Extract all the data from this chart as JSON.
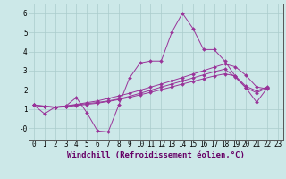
{
  "xlabel": "Windchill (Refroidissement éolien,°C)",
  "background_color": "#cce8e8",
  "grid_color": "#aacccc",
  "line_color": "#993399",
  "xlim": [
    -0.5,
    23.5
  ],
  "ylim": [
    -0.6,
    6.5
  ],
  "yticks": [
    0,
    1,
    2,
    3,
    4,
    5,
    6
  ],
  "ytick_labels": [
    "-0",
    "1",
    "2",
    "3",
    "4",
    "5",
    "6"
  ],
  "xticks": [
    0,
    1,
    2,
    3,
    4,
    5,
    6,
    7,
    8,
    9,
    10,
    11,
    12,
    13,
    14,
    15,
    16,
    17,
    18,
    19,
    20,
    21,
    22,
    23
  ],
  "series": [
    [
      1.2,
      0.75,
      1.1,
      1.15,
      1.6,
      0.8,
      -0.15,
      -0.2,
      1.2,
      2.6,
      3.4,
      3.5,
      3.5,
      5.0,
      6.0,
      5.2,
      4.1,
      4.1,
      3.5,
      2.7,
      2.1,
      1.35,
      2.1
    ],
    [
      1.2,
      1.15,
      1.1,
      1.15,
      1.22,
      1.28,
      1.34,
      1.42,
      1.52,
      1.66,
      1.82,
      1.98,
      2.14,
      2.3,
      2.46,
      2.62,
      2.78,
      2.94,
      3.08,
      2.65,
      2.1,
      1.85,
      2.1
    ],
    [
      1.2,
      1.13,
      1.07,
      1.12,
      1.18,
      1.24,
      1.3,
      1.39,
      1.49,
      1.6,
      1.74,
      1.87,
      2.01,
      2.15,
      2.3,
      2.44,
      2.58,
      2.72,
      2.83,
      2.72,
      2.18,
      1.95,
      2.15
    ],
    [
      1.2,
      1.15,
      1.1,
      1.16,
      1.24,
      1.33,
      1.42,
      1.55,
      1.68,
      1.82,
      1.98,
      2.14,
      2.3,
      2.47,
      2.64,
      2.82,
      3.0,
      3.18,
      3.35,
      3.2,
      2.75,
      2.15,
      2.05
    ]
  ],
  "xlabel_fontsize": 6.5,
  "tick_fontsize": 5.5,
  "lw": 0.7,
  "ms": 2.0
}
